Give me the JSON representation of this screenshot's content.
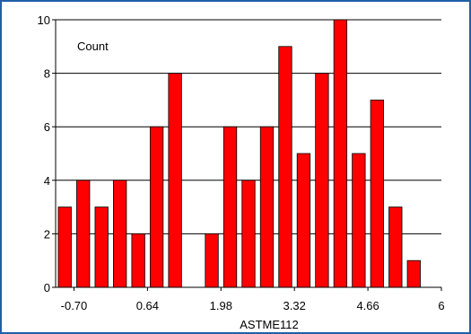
{
  "chart_data": {
    "type": "bar",
    "title": "",
    "ylabel": "Count",
    "xlabel": "ASTME112",
    "xlim": [
      -1.035,
      6
    ],
    "ylim": [
      0,
      10
    ],
    "y_ticks": [
      "0",
      "2",
      "4",
      "6",
      "8",
      "10"
    ],
    "x_ticks": [
      {
        "value": -0.7,
        "label": "-0.70"
      },
      {
        "value": 0.64,
        "label": "0.64"
      },
      {
        "value": 1.98,
        "label": "1.98"
      },
      {
        "value": 3.32,
        "label": "3.32"
      },
      {
        "value": 4.66,
        "label": "4.66"
      },
      {
        "value": 6,
        "label": "6"
      }
    ],
    "bin_width": 0.335,
    "bin_start": -1.035,
    "values": [
      3,
      4,
      3,
      4,
      2,
      6,
      8,
      0,
      2,
      6,
      4,
      6,
      9,
      5,
      8,
      10,
      5,
      7,
      3,
      1
    ],
    "grid": true,
    "colors": {
      "bar_fill": "#ff0000",
      "bar_stroke": "#000000",
      "frame_border": "#1f5fa8",
      "grid": "#000000"
    }
  }
}
